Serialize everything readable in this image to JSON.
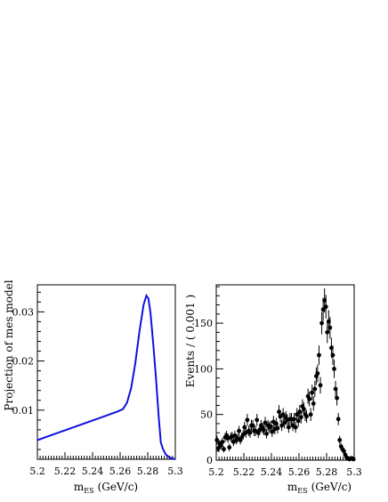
{
  "chart_data": [
    {
      "type": "line",
      "xlabel": "m",
      "xlabel_sub": "ES",
      "xlabel_unit": "(GeV/c)",
      "ylabel": "Projection of mes model",
      "xlim": [
        5.2,
        5.3
      ],
      "ylim": [
        0,
        0.0355
      ],
      "xticks": [
        "5.2",
        "5.22",
        "5.24",
        "5.26",
        "5.28",
        "5.3"
      ],
      "yticks": [
        {
          "value": 0.01,
          "label": "0.01"
        },
        {
          "value": 0.02,
          "label": "0.02"
        },
        {
          "value": 0.03,
          "label": "0.03"
        }
      ],
      "grid": false,
      "color": "#1010e0",
      "series": [
        {
          "x": [
            5.2,
            5.21,
            5.22,
            5.23,
            5.24,
            5.25,
            5.258,
            5.262,
            5.265,
            5.268,
            5.271,
            5.274,
            5.277,
            5.279,
            5.2805,
            5.282,
            5.284,
            5.286,
            5.288,
            5.289,
            5.2895,
            5.291,
            5.293,
            5.296,
            5.3
          ],
          "y": [
            0.0039,
            0.0049,
            0.0059,
            0.0069,
            0.0079,
            0.0089,
            0.0097,
            0.0102,
            0.0115,
            0.0145,
            0.0195,
            0.026,
            0.0315,
            0.0333,
            0.0327,
            0.0298,
            0.0235,
            0.0165,
            0.0085,
            0.0052,
            0.0034,
            0.0021,
            0.001,
            0.0003,
            0.0
          ]
        }
      ]
    },
    {
      "type": "scatter",
      "xlabel": "m",
      "xlabel_sub": "ES",
      "xlabel_unit": "(GeV/c)",
      "ylabel": "Events / ( 0.001 )",
      "xlim": [
        5.2,
        5.3
      ],
      "ylim": [
        0,
        192
      ],
      "xticks": [
        "5.2",
        "5.22",
        "5.24",
        "5.26",
        "5.28",
        "5.3"
      ],
      "yticks": [
        {
          "value": 0,
          "label": "0"
        },
        {
          "value": 50,
          "label": "50"
        },
        {
          "value": 100,
          "label": "100"
        },
        {
          "value": 150,
          "label": "150"
        }
      ],
      "grid": false,
      "series": [
        {
          "x": [
            5.2005,
            5.2015,
            5.2025,
            5.2035,
            5.2045,
            5.2055,
            5.2065,
            5.2075,
            5.2085,
            5.2095,
            5.2105,
            5.2115,
            5.2125,
            5.2135,
            5.2145,
            5.2155,
            5.2165,
            5.2175,
            5.2185,
            5.2195,
            5.2205,
            5.2215,
            5.2225,
            5.2235,
            5.2245,
            5.2255,
            5.2265,
            5.2275,
            5.2285,
            5.2295,
            5.2305,
            5.2315,
            5.2325,
            5.2335,
            5.2345,
            5.2355,
            5.2365,
            5.2375,
            5.2385,
            5.2395,
            5.2405,
            5.2415,
            5.2425,
            5.2435,
            5.2445,
            5.2455,
            5.2465,
            5.2475,
            5.2485,
            5.2495,
            5.2505,
            5.2515,
            5.2525,
            5.2535,
            5.2545,
            5.2555,
            5.2565,
            5.2575,
            5.2585,
            5.2595,
            5.2605,
            5.2615,
            5.2625,
            5.2635,
            5.2645,
            5.2655,
            5.2665,
            5.2675,
            5.2685,
            5.2695,
            5.2705,
            5.2715,
            5.2725,
            5.2735,
            5.2745,
            5.2755,
            5.2765,
            5.2775,
            5.2785,
            5.2795,
            5.2805,
            5.2815,
            5.2825,
            5.2835,
            5.2845,
            5.2855,
            5.2865,
            5.2875,
            5.2885,
            5.2895,
            5.2905,
            5.2915,
            5.2925,
            5.2935,
            5.2945,
            5.2955,
            5.2965,
            5.2975,
            5.2985,
            5.2995
          ],
          "y": [
            22,
            13,
            18,
            16,
            20,
            12,
            25,
            27,
            24,
            14,
            25,
            26,
            20,
            27,
            22,
            24,
            32,
            22,
            25,
            28,
            36,
            30,
            44,
            32,
            30,
            38,
            38,
            32,
            32,
            44,
            30,
            33,
            38,
            35,
            33,
            41,
            29,
            38,
            36,
            37,
            31,
            42,
            34,
            40,
            35,
            53,
            48,
            38,
            50,
            41,
            47,
            44,
            36,
            45,
            45,
            38,
            45,
            36,
            50,
            43,
            53,
            47,
            59,
            56,
            50,
            48,
            70,
            67,
            50,
            74,
            62,
            78,
            92,
            95,
            115,
            82,
            150,
            165,
            175,
            168,
            140,
            152,
            145,
            123,
            115,
            100,
            78,
            68,
            45,
            22,
            15,
            12,
            10,
            6,
            3,
            2,
            1,
            2,
            2,
            1
          ],
          "err": [
            5,
            4,
            4,
            4,
            4.5,
            3.5,
            5,
            5.2,
            5,
            4,
            5,
            5.1,
            4.5,
            5.2,
            4.7,
            4.9,
            5.6,
            4.7,
            5,
            5.3,
            6,
            5.5,
            6.6,
            5.6,
            5.5,
            6.1,
            6.1,
            5.6,
            5.6,
            6.6,
            5.5,
            5.7,
            6.1,
            5.9,
            5.7,
            6.4,
            5.4,
            6.1,
            6,
            6.1,
            5.6,
            6.5,
            5.8,
            6.3,
            5.9,
            7.3,
            6.9,
            6.1,
            7.1,
            6.4,
            6.9,
            6.6,
            6,
            6.7,
            6.7,
            6.1,
            6.7,
            6,
            7.1,
            6.6,
            7.3,
            6.9,
            7.7,
            7.5,
            7.1,
            6.9,
            8.4,
            8.2,
            7.1,
            8.6,
            7.9,
            8.8,
            9.6,
            9.7,
            10.7,
            9.1,
            12.2,
            12.8,
            13.2,
            13,
            11.8,
            12.3,
            12,
            11.1,
            10.7,
            10,
            8.8,
            8.2,
            6.7,
            4.7,
            3.9,
            3.5,
            3.2,
            2.4,
            1.7,
            1.4,
            1,
            1.4,
            1.4,
            1
          ]
        }
      ]
    }
  ]
}
